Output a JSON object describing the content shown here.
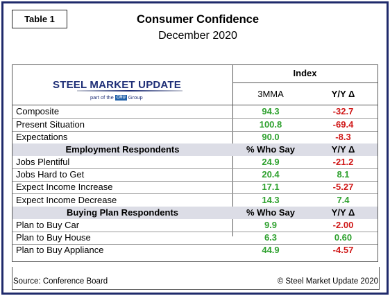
{
  "table_tag": "Table 1",
  "title": "Consumer Confidence",
  "subtitle": "December 2020",
  "logo": {
    "main": "STEEL MARKET UPDATE",
    "sub_prefix": "part of the",
    "sub_badge": "CRU",
    "sub_suffix": "Group"
  },
  "header": {
    "index": "Index",
    "col1": "3MMA",
    "col2": "Y/Y Δ"
  },
  "rows_top": [
    {
      "label": "Composite",
      "v1": "94.3",
      "v2": "-32.7"
    },
    {
      "label": "Present Situation",
      "v1": "100.8",
      "v2": "-69.4"
    },
    {
      "label": "Expectations",
      "v1": "90.0",
      "v2": "-8.3"
    }
  ],
  "section_employment": {
    "label": "Employment Respondents",
    "col1": "% Who Say",
    "col2": "Y/Y Δ"
  },
  "rows_employment": [
    {
      "label": "Jobs Plentiful",
      "v1": "24.9",
      "v2": "-21.2"
    },
    {
      "label": "Jobs Hard to Get",
      "v1": "20.4",
      "v2": "8.1"
    },
    {
      "label": "Expect Income Increase",
      "v1": "17.1",
      "v2": "-5.27"
    },
    {
      "label": "Expect Income Decrease",
      "v1": "14.3",
      "v2": "7.4"
    }
  ],
  "section_buying": {
    "label": "Buying Plan Respondents",
    "col1": "% Who Say",
    "col2": "Y/Y Δ"
  },
  "rows_buying": [
    {
      "label": "Plan to Buy Car",
      "v1": "9.9",
      "v2": "-2.00"
    },
    {
      "label": "Plan to Buy House",
      "v1": "6.3",
      "v2": "0.60"
    },
    {
      "label": "Plan to Buy Appliance",
      "v1": "44.9",
      "v2": "-4.57"
    }
  ],
  "footer": {
    "source": "Source: Conference Board",
    "copyright": "© Steel Market Update 2020"
  },
  "colors": {
    "positive": "#2fa12f",
    "negative": "#d01818",
    "border": "#1f2a6b",
    "section_bg": "#dcdde6"
  }
}
